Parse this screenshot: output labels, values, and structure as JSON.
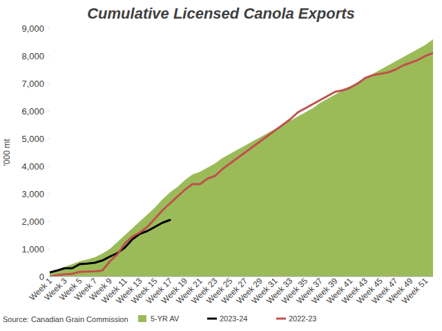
{
  "chart_data": {
    "type": "line",
    "title": "Cumulative Licensed Canola Exports",
    "y_label": "'000 mt",
    "source": "Source: Canadian Grain Commission",
    "categories": [
      "Week 1",
      null,
      "Week 3",
      null,
      "Week 5",
      null,
      "Week 7",
      null,
      "Week 9",
      null,
      "Week 11",
      null,
      "Week 13",
      null,
      "Week 15",
      null,
      "Week 17",
      null,
      "Week 19",
      null,
      "Week 21",
      null,
      "Week 23",
      null,
      "Week 25",
      null,
      "Week 27",
      null,
      "Week 29",
      null,
      "Week 31",
      null,
      "Week 33",
      null,
      "Week 35",
      null,
      "Week 37",
      null,
      "Week 39",
      null,
      "Week 41",
      null,
      "Week 43",
      null,
      "Week 45",
      null,
      "Week 47",
      null,
      "Week 49",
      null,
      "Week 51",
      null
    ],
    "series": [
      {
        "name": "5-YR AV",
        "type": "area",
        "color": "#9bbb59",
        "values": [
          150,
          250,
          350,
          450,
          550,
          620,
          700,
          830,
          1000,
          1250,
          1500,
          1750,
          2000,
          2250,
          2500,
          2800,
          3050,
          3250,
          3500,
          3700,
          3800,
          3950,
          4100,
          4300,
          4450,
          4600,
          4750,
          4900,
          5050,
          5200,
          5350,
          5500,
          5650,
          5800,
          5950,
          6100,
          6300,
          6450,
          6600,
          6750,
          6900,
          7050,
          7200,
          7350,
          7500,
          7650,
          7800,
          7950,
          8100,
          8250,
          8400,
          8600
        ]
      },
      {
        "name": "2023-24",
        "type": "line",
        "color": "#000000",
        "values": [
          150,
          220,
          300,
          300,
          450,
          470,
          500,
          580,
          720,
          850,
          1050,
          1350,
          1550,
          1650,
          1800,
          1950,
          2050,
          null,
          null,
          null,
          null,
          null,
          null,
          null,
          null,
          null,
          null,
          null,
          null,
          null,
          null,
          null,
          null,
          null,
          null,
          null,
          null,
          null,
          null,
          null,
          null,
          null,
          null,
          null,
          null,
          null,
          null,
          null,
          null,
          null,
          null,
          null
        ]
      },
      {
        "name": "2022-23",
        "type": "line",
        "color": "#c0504d",
        "values": [
          0,
          50,
          80,
          100,
          170,
          180,
          190,
          220,
          550,
          800,
          1200,
          1450,
          1600,
          1800,
          2100,
          2400,
          2650,
          2900,
          3150,
          3350,
          3350,
          3550,
          3650,
          3900,
          4100,
          4300,
          4500,
          4700,
          4900,
          5100,
          5300,
          5500,
          5700,
          5950,
          6100,
          6250,
          6400,
          6550,
          6700,
          6750,
          6850,
          7000,
          7200,
          7300,
          7350,
          7400,
          7500,
          7650,
          7750,
          7850,
          8000,
          8100
        ]
      }
    ],
    "ylim": [
      0,
      9000
    ],
    "yticks": [
      0,
      {
        "value": 1000,
        "label": "1,000"
      },
      {
        "value": 2000,
        "label": "2,000"
      },
      {
        "value": 3000,
        "label": "3,000"
      },
      {
        "value": 4000,
        "label": "4,000"
      },
      {
        "value": 5000,
        "label": "5,000"
      },
      {
        "value": 6000,
        "label": "6,000"
      },
      {
        "value": 7000,
        "label": "7,000"
      },
      {
        "value": 8000,
        "label": "8,000"
      },
      {
        "value": 9000,
        "label": "9,000"
      }
    ],
    "grid": false,
    "legend": "bottom"
  }
}
